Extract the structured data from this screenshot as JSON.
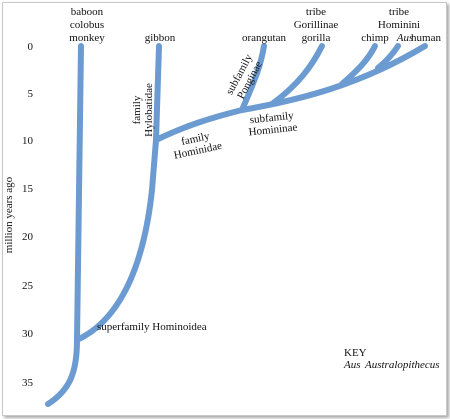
{
  "colors": {
    "branch": "#6b9bd1",
    "text": "#111111",
    "background": "#ffffff"
  },
  "axis": {
    "title": "million years ago",
    "ticks": [
      "0",
      "5",
      "10",
      "15",
      "20",
      "25",
      "30",
      "35"
    ]
  },
  "taxa": {
    "baboon": "baboon",
    "colobus": "colobus",
    "monkey": "monkey",
    "gibbon": "gibbon",
    "orangutan": "orangutan",
    "gorilla": "gorilla",
    "chimp": "chimp",
    "aus": "Aus",
    "human": "human"
  },
  "tribes": {
    "gorillinae_word": "tribe",
    "gorillinae_name": "Gorillinae",
    "hominini_word": "tribe",
    "hominini_name": "Hominini"
  },
  "clades": {
    "hylobatidae_word": "family",
    "hylobatidae_name": "Hylobatidae",
    "ponginae_word": "subfamily",
    "ponginae_name": "Ponginae",
    "hominidae_word": "family",
    "hominidae_name": "Hominidae",
    "homininae_word": "subfamily",
    "homininae_name": "Homininae",
    "hominoidea": "superfamily Hominoidea"
  },
  "key": {
    "title": "KEY",
    "abbr": "Aus",
    "full": "Australopithecus"
  }
}
